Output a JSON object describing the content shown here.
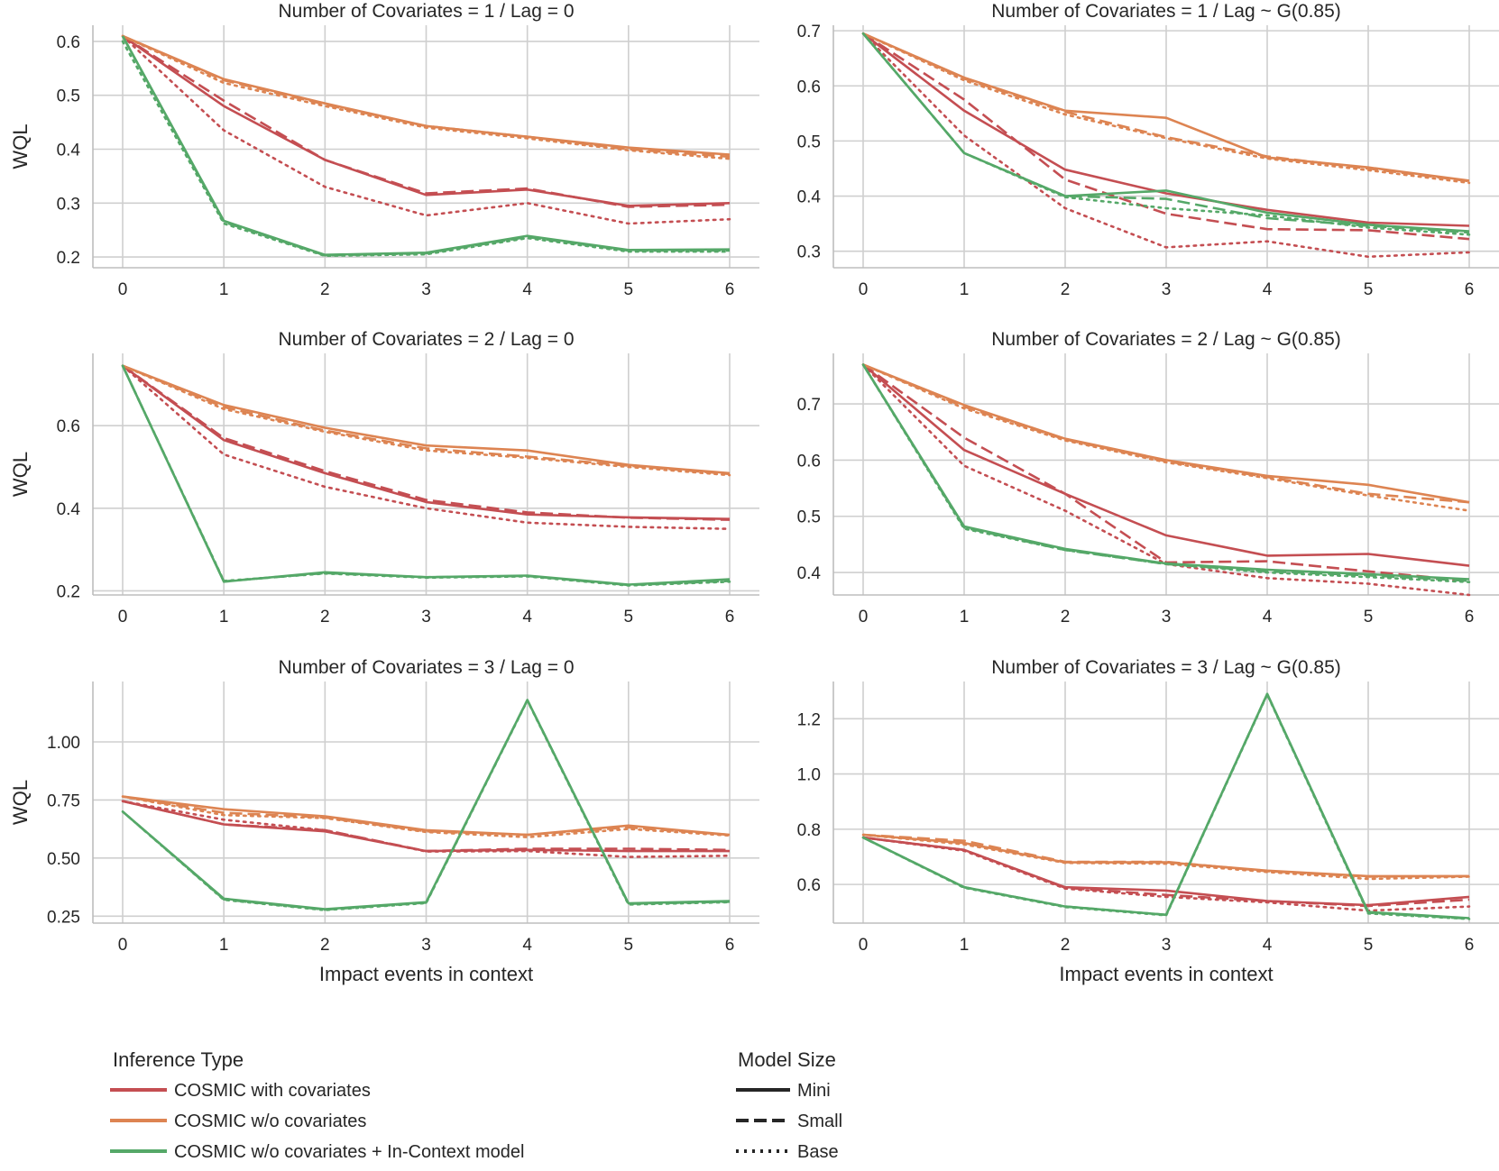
{
  "chart_data": {
    "type": "line",
    "x": [
      0,
      1,
      2,
      3,
      4,
      5,
      6
    ],
    "xlabel": "Impact events in context",
    "ylabel": "WQL",
    "grid": true,
    "colors": {
      "COSMIC with covariates": "#c44e52",
      "COSMIC w/o covariates": "#dd8452",
      "COSMIC w/o covariates + In-Context model": "#55a868"
    },
    "legend": {
      "placement": "bottom",
      "inference_title": "Inference Type",
      "inference_types": [
        "COSMIC with covariates",
        "COSMIC w/o covariates",
        "COSMIC w/o covariates + In-Context model"
      ],
      "size_title": "Model Size",
      "sizes": [
        "Mini",
        "Small",
        "Base"
      ]
    },
    "panels": [
      {
        "title": "Number of Covariates = 1 / Lag = 0",
        "ylim": [
          0.18,
          0.63
        ],
        "yticks": [
          0.2,
          0.3,
          0.4,
          0.5,
          0.6
        ],
        "ytick_labels": [
          "0.2",
          "0.3",
          "0.4",
          "0.5",
          "0.6"
        ],
        "series": [
          {
            "inference": "COSMIC with covariates",
            "size": "Mini",
            "values": [
              0.61,
              0.48,
              0.38,
              0.315,
              0.325,
              0.295,
              0.3
            ]
          },
          {
            "inference": "COSMIC with covariates",
            "size": "Small",
            "values": [
              0.61,
              0.49,
              0.38,
              0.318,
              0.327,
              0.293,
              0.297
            ]
          },
          {
            "inference": "COSMIC with covariates",
            "size": "Base",
            "values": [
              0.61,
              0.435,
              0.33,
              0.277,
              0.3,
              0.262,
              0.27
            ]
          },
          {
            "inference": "COSMIC w/o covariates",
            "size": "Mini",
            "values": [
              0.61,
              0.53,
              0.485,
              0.443,
              0.423,
              0.403,
              0.39
            ]
          },
          {
            "inference": "COSMIC w/o covariates",
            "size": "Small",
            "values": [
              0.61,
              0.528,
              0.483,
              0.443,
              0.423,
              0.4,
              0.386
            ]
          },
          {
            "inference": "COSMIC w/o covariates",
            "size": "Base",
            "values": [
              0.61,
              0.523,
              0.48,
              0.44,
              0.42,
              0.398,
              0.382
            ]
          },
          {
            "inference": "COSMIC w/o covariates + In-Context model",
            "size": "Mini",
            "values": [
              0.61,
              0.267,
              0.204,
              0.208,
              0.239,
              0.213,
              0.214
            ]
          },
          {
            "inference": "COSMIC w/o covariates + In-Context model",
            "size": "Small",
            "values": [
              0.61,
              0.265,
              0.203,
              0.207,
              0.237,
              0.212,
              0.212
            ]
          },
          {
            "inference": "COSMIC w/o covariates + In-Context model",
            "size": "Base",
            "values": [
              0.6,
              0.262,
              0.202,
              0.205,
              0.235,
              0.21,
              0.21
            ]
          }
        ]
      },
      {
        "title": "Number of Covariates = 1 / Lag ~ G(0.85)",
        "ylim": [
          0.27,
          0.71
        ],
        "yticks": [
          0.3,
          0.4,
          0.5,
          0.6,
          0.7
        ],
        "ytick_labels": [
          "0.3",
          "0.4",
          "0.5",
          "0.6",
          "0.7"
        ],
        "series": [
          {
            "inference": "COSMIC with covariates",
            "size": "Mini",
            "values": [
              0.695,
              0.555,
              0.448,
              0.405,
              0.375,
              0.352,
              0.346
            ]
          },
          {
            "inference": "COSMIC with covariates",
            "size": "Small",
            "values": [
              0.695,
              0.575,
              0.43,
              0.368,
              0.34,
              0.338,
              0.322
            ]
          },
          {
            "inference": "COSMIC with covariates",
            "size": "Base",
            "values": [
              0.695,
              0.51,
              0.378,
              0.307,
              0.318,
              0.29,
              0.298
            ]
          },
          {
            "inference": "COSMIC w/o covariates",
            "size": "Mini",
            "values": [
              0.695,
              0.615,
              0.555,
              0.542,
              0.47,
              0.452,
              0.428
            ]
          },
          {
            "inference": "COSMIC w/o covariates",
            "size": "Small",
            "values": [
              0.695,
              0.613,
              0.553,
              0.507,
              0.472,
              0.45,
              0.427
            ]
          },
          {
            "inference": "COSMIC w/o covariates",
            "size": "Base",
            "values": [
              0.695,
              0.61,
              0.548,
              0.505,
              0.468,
              0.447,
              0.424
            ]
          },
          {
            "inference": "COSMIC w/o covariates + In-Context model",
            "size": "Mini",
            "values": [
              0.695,
              0.478,
              0.4,
              0.41,
              0.37,
              0.348,
              0.336
            ]
          },
          {
            "inference": "COSMIC w/o covariates + In-Context model",
            "size": "Small",
            "values": [
              0.695,
              0.478,
              0.4,
              0.395,
              0.36,
              0.346,
              0.334
            ]
          },
          {
            "inference": "COSMIC w/o covariates + In-Context model",
            "size": "Base",
            "values": [
              0.695,
              0.478,
              0.398,
              0.378,
              0.365,
              0.343,
              0.33
            ]
          }
        ]
      },
      {
        "title": "Number of Covariates = 2 / Lag = 0",
        "ylim": [
          0.19,
          0.775
        ],
        "yticks": [
          0.2,
          0.4,
          0.6
        ],
        "ytick_labels": [
          "0.2",
          "0.4",
          "0.6"
        ],
        "series": [
          {
            "inference": "COSMIC with covariates",
            "size": "Mini",
            "values": [
              0.745,
              0.565,
              0.485,
              0.415,
              0.385,
              0.378,
              0.374
            ]
          },
          {
            "inference": "COSMIC with covariates",
            "size": "Small",
            "values": [
              0.745,
              0.57,
              0.49,
              0.42,
              0.39,
              0.377,
              0.372
            ]
          },
          {
            "inference": "COSMIC with covariates",
            "size": "Base",
            "values": [
              0.745,
              0.53,
              0.452,
              0.4,
              0.365,
              0.355,
              0.35
            ]
          },
          {
            "inference": "COSMIC w/o covariates",
            "size": "Mini",
            "values": [
              0.745,
              0.65,
              0.595,
              0.552,
              0.54,
              0.505,
              0.485
            ]
          },
          {
            "inference": "COSMIC w/o covariates",
            "size": "Small",
            "values": [
              0.745,
              0.645,
              0.588,
              0.545,
              0.525,
              0.503,
              0.483
            ]
          },
          {
            "inference": "COSMIC w/o covariates",
            "size": "Base",
            "values": [
              0.745,
              0.64,
              0.585,
              0.54,
              0.522,
              0.5,
              0.48
            ]
          },
          {
            "inference": "COSMIC w/o covariates + In-Context model",
            "size": "Mini",
            "values": [
              0.745,
              0.222,
              0.245,
              0.233,
              0.237,
              0.215,
              0.228
            ]
          },
          {
            "inference": "COSMIC w/o covariates + In-Context model",
            "size": "Small",
            "values": [
              0.745,
              0.223,
              0.243,
              0.233,
              0.236,
              0.214,
              0.224
            ]
          },
          {
            "inference": "COSMIC w/o covariates + In-Context model",
            "size": "Base",
            "values": [
              0.745,
              0.224,
              0.242,
              0.232,
              0.235,
              0.213,
              0.222
            ]
          }
        ]
      },
      {
        "title": "Number of Covariates = 2 / Lag ~ G(0.85)",
        "ylim": [
          0.36,
          0.79
        ],
        "yticks": [
          0.4,
          0.5,
          0.6,
          0.7
        ],
        "ytick_labels": [
          "0.4",
          "0.5",
          "0.6",
          "0.7"
        ],
        "series": [
          {
            "inference": "COSMIC with covariates",
            "size": "Mini",
            "values": [
              0.77,
              0.618,
              0.54,
              0.466,
              0.43,
              0.433,
              0.412
            ]
          },
          {
            "inference": "COSMIC with covariates",
            "size": "Small",
            "values": [
              0.77,
              0.64,
              0.54,
              0.418,
              0.42,
              0.402,
              0.385
            ]
          },
          {
            "inference": "COSMIC with covariates",
            "size": "Base",
            "values": [
              0.77,
              0.59,
              0.51,
              0.415,
              0.39,
              0.38,
              0.36
            ]
          },
          {
            "inference": "COSMIC w/o covariates",
            "size": "Mini",
            "values": [
              0.77,
              0.698,
              0.638,
              0.6,
              0.572,
              0.556,
              0.525
            ]
          },
          {
            "inference": "COSMIC w/o covariates",
            "size": "Small",
            "values": [
              0.77,
              0.695,
              0.637,
              0.598,
              0.57,
              0.54,
              0.525
            ]
          },
          {
            "inference": "COSMIC w/o covariates",
            "size": "Base",
            "values": [
              0.77,
              0.692,
              0.635,
              0.596,
              0.568,
              0.537,
              0.51
            ]
          },
          {
            "inference": "COSMIC w/o covariates + In-Context model",
            "size": "Mini",
            "values": [
              0.77,
              0.482,
              0.442,
              0.416,
              0.405,
              0.397,
              0.388
            ]
          },
          {
            "inference": "COSMIC w/o covariates + In-Context model",
            "size": "Small",
            "values": [
              0.77,
              0.48,
              0.44,
              0.415,
              0.402,
              0.395,
              0.385
            ]
          },
          {
            "inference": "COSMIC w/o covariates + In-Context model",
            "size": "Base",
            "values": [
              0.77,
              0.478,
              0.44,
              0.415,
              0.4,
              0.392,
              0.383
            ]
          }
        ]
      },
      {
        "title": "Number of Covariates = 3 / Lag = 0",
        "ylim": [
          0.22,
          1.26
        ],
        "yticks": [
          0.25,
          0.5,
          0.75,
          1.0
        ],
        "ytick_labels": [
          "0.25",
          "0.50",
          "0.75",
          "1.00"
        ],
        "series": [
          {
            "inference": "COSMIC with covariates",
            "size": "Mini",
            "values": [
              0.745,
              0.645,
              0.615,
              0.53,
              0.535,
              0.53,
              0.53
            ]
          },
          {
            "inference": "COSMIC with covariates",
            "size": "Small",
            "values": [
              0.745,
              0.645,
              0.62,
              0.53,
              0.54,
              0.54,
              0.535
            ]
          },
          {
            "inference": "COSMIC with covariates",
            "size": "Base",
            "values": [
              0.745,
              0.665,
              0.62,
              0.528,
              0.53,
              0.505,
              0.51
            ]
          },
          {
            "inference": "COSMIC w/o covariates",
            "size": "Mini",
            "values": [
              0.765,
              0.71,
              0.68,
              0.62,
              0.6,
              0.64,
              0.6
            ]
          },
          {
            "inference": "COSMIC w/o covariates",
            "size": "Small",
            "values": [
              0.765,
              0.695,
              0.675,
              0.615,
              0.6,
              0.632,
              0.6
            ]
          },
          {
            "inference": "COSMIC w/o covariates",
            "size": "Base",
            "values": [
              0.765,
              0.685,
              0.672,
              0.612,
              0.59,
              0.625,
              0.597
            ]
          },
          {
            "inference": "COSMIC w/o covariates + In-Context model",
            "size": "Mini",
            "values": [
              0.7,
              0.325,
              0.28,
              0.31,
              1.18,
              0.305,
              0.315
            ]
          },
          {
            "inference": "COSMIC w/o covariates + In-Context model",
            "size": "Small",
            "values": [
              0.7,
              0.322,
              0.278,
              0.308,
              1.18,
              0.303,
              0.312
            ]
          },
          {
            "inference": "COSMIC w/o covariates + In-Context model",
            "size": "Base",
            "values": [
              0.7,
              0.32,
              0.276,
              0.306,
              1.178,
              0.3,
              0.31
            ]
          }
        ]
      },
      {
        "title": "Number of Covariates = 3 / Lag ~ G(0.85)",
        "ylim": [
          0.46,
          1.335
        ],
        "yticks": [
          0.6,
          0.8,
          1.0,
          1.2
        ],
        "ytick_labels": [
          "0.6",
          "0.8",
          "1.0",
          "1.2"
        ],
        "series": [
          {
            "inference": "COSMIC with covariates",
            "size": "Mini",
            "values": [
              0.77,
              0.725,
              0.59,
              0.578,
              0.54,
              0.525,
              0.555
            ]
          },
          {
            "inference": "COSMIC with covariates",
            "size": "Small",
            "values": [
              0.77,
              0.725,
              0.588,
              0.562,
              0.54,
              0.522,
              0.545
            ]
          },
          {
            "inference": "COSMIC with covariates",
            "size": "Base",
            "values": [
              0.77,
              0.722,
              0.585,
              0.555,
              0.535,
              0.505,
              0.52
            ]
          },
          {
            "inference": "COSMIC w/o covariates",
            "size": "Mini",
            "values": [
              0.78,
              0.75,
              0.68,
              0.68,
              0.65,
              0.63,
              0.63
            ]
          },
          {
            "inference": "COSMIC w/o covariates",
            "size": "Small",
            "values": [
              0.78,
              0.758,
              0.682,
              0.682,
              0.648,
              0.628,
              0.63
            ]
          },
          {
            "inference": "COSMIC w/o covariates",
            "size": "Base",
            "values": [
              0.78,
              0.745,
              0.678,
              0.675,
              0.645,
              0.62,
              0.628
            ]
          },
          {
            "inference": "COSMIC w/o covariates + In-Context model",
            "size": "Mini",
            "values": [
              0.77,
              0.59,
              0.52,
              0.49,
              1.29,
              0.5,
              0.478
            ]
          },
          {
            "inference": "COSMIC w/o covariates + In-Context model",
            "size": "Small",
            "values": [
              0.77,
              0.59,
              0.52,
              0.49,
              1.29,
              0.498,
              0.476
            ]
          },
          {
            "inference": "COSMIC w/o covariates + In-Context model",
            "size": "Base",
            "values": [
              0.77,
              0.588,
              0.518,
              0.488,
              1.288,
              0.495,
              0.475
            ]
          }
        ]
      }
    ]
  }
}
